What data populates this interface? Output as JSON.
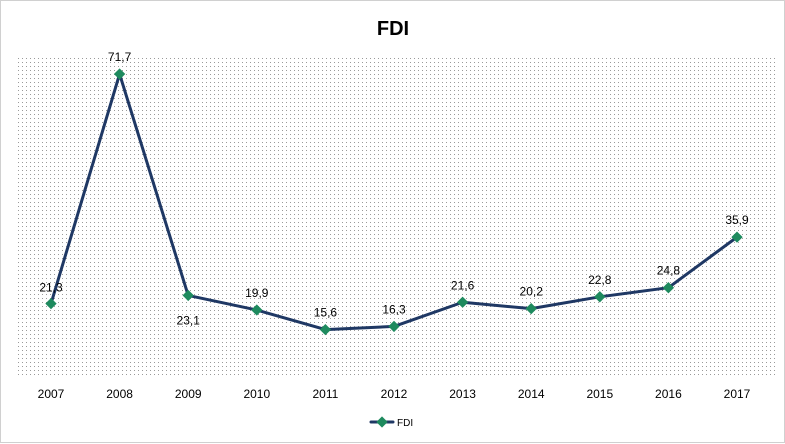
{
  "chart_data": {
    "type": "line",
    "title": "FDI",
    "xlabel": "",
    "ylabel": "",
    "categories": [
      "2007",
      "2008",
      "2009",
      "2010",
      "2011",
      "2012",
      "2013",
      "2014",
      "2015",
      "2016",
      "2017"
    ],
    "series": [
      {
        "name": "FDI",
        "values": [
          21.3,
          71.7,
          23.1,
          19.9,
          15.6,
          16.3,
          21.6,
          20.2,
          22.8,
          24.8,
          35.9
        ],
        "labels": [
          "21,3",
          "71,7",
          "23,1",
          "19,9",
          "15,6",
          "16,3",
          "21,6",
          "20,2",
          "22,8",
          "24,8",
          "35,9"
        ],
        "color": "#1f3864",
        "marker_color": "#1e8a5e"
      }
    ],
    "ylim": [
      0,
      80
    ],
    "grid": false,
    "legend": "bottom",
    "plot_background": "dotted"
  }
}
